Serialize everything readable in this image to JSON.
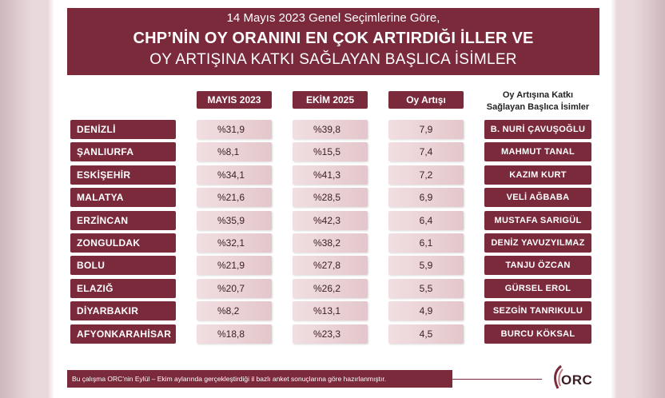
{
  "header": {
    "line1": "14 Mayıs 2023 Genel Seçimlerine Göre,",
    "line2": "CHP’NİN OY ORANINI EN ÇOK ARTIRDIĞI İLLER VE",
    "line3": "OY ARTIŞINA KATKI SAĞLAYAN BAŞLICA İSİMLER"
  },
  "columns": {
    "c1": "MAYIS 2023",
    "c2": "EKİM 2025",
    "c3": "Oy Artışı",
    "c4_line1": "Oy Artışına Katkı",
    "c4_line2": "Sağlayan Başlıca İsimler"
  },
  "chart_data": {
    "type": "table",
    "columns": [
      "MAYIS 2023",
      "EKİM 2025",
      "Oy Artışı",
      "Oy Artışına Katkı Sağlayan Başlıca İsimler"
    ],
    "rows": [
      {
        "province": "DENİZLİ",
        "may2023": "%31,9",
        "oct2025": "%39,8",
        "increase": "7,9",
        "name": "B. NURİ ÇAVUŞOĞLU"
      },
      {
        "province": "ŞANLIURFA",
        "may2023": "%8,1",
        "oct2025": "%15,5",
        "increase": "7,4",
        "name": "MAHMUT TANAL"
      },
      {
        "province": "ESKİŞEHİR",
        "may2023": "%34,1",
        "oct2025": "%41,3",
        "increase": "7,2",
        "name": "KAZIM KURT"
      },
      {
        "province": "MALATYA",
        "may2023": "%21,6",
        "oct2025": "%28,5",
        "increase": "6,9",
        "name": "VELİ AĞBABA"
      },
      {
        "province": "ERZİNCAN",
        "may2023": "%35,9",
        "oct2025": "%42,3",
        "increase": "6,4",
        "name": "MUSTAFA SARIGÜL"
      },
      {
        "province": "ZONGULDAK",
        "may2023": "%32,1",
        "oct2025": "%38,2",
        "increase": "6,1",
        "name": "DENİZ YAVUZYILMAZ"
      },
      {
        "province": "BOLU",
        "may2023": "%21,9",
        "oct2025": "%27,8",
        "increase": "5,9",
        "name": "TANJU ÖZCAN"
      },
      {
        "province": "ELAZIĞ",
        "may2023": "%20,7",
        "oct2025": "%26,2",
        "increase": "5,5",
        "name": "GÜRSEL EROL"
      },
      {
        "province": "DİYARBAKIR",
        "may2023": "%8,2",
        "oct2025": "%13,1",
        "increase": "4,9",
        "name": "SEZGİN TANRIKULU"
      },
      {
        "province": "AFYONKARAHİSAR",
        "may2023": "%18,8",
        "oct2025": "%23,3",
        "increase": "4,5",
        "name": "BURCU KÖKSAL"
      }
    ]
  },
  "footer": {
    "note": "Bu çalışma ORC’nin Eylül – Ekim aylarında gerçekleştirdiği il bazlı anket sonuçlarına göre hazırlanmıştır.",
    "logo": "ORC"
  },
  "colors": {
    "accent": "#7a2a3b",
    "cell": "#ecd6da"
  }
}
